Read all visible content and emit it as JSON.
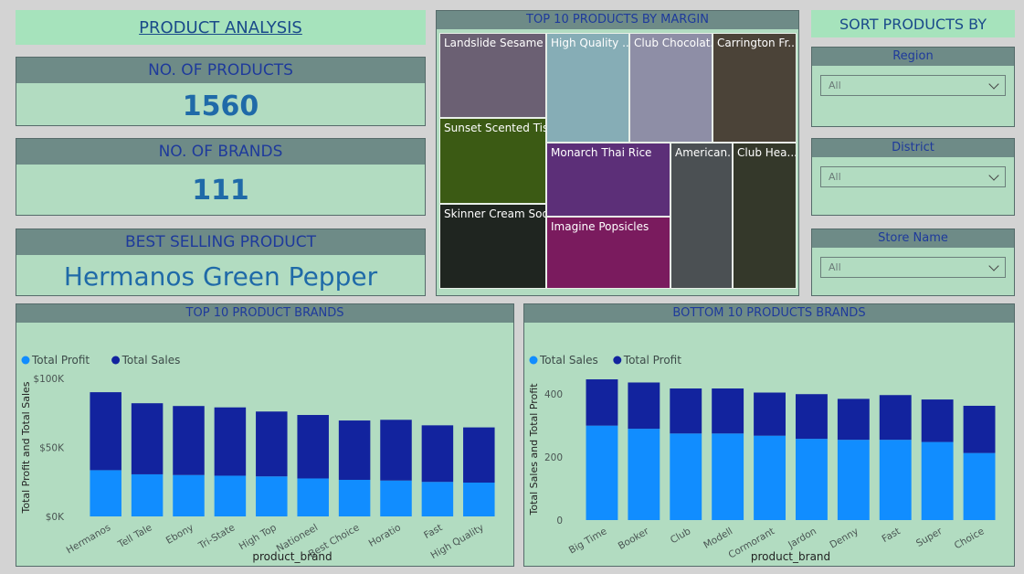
{
  "title": "PRODUCT ANALYSIS",
  "kpis": {
    "products": {
      "label": "NO. OF PRODUCTS",
      "value": "1560"
    },
    "brands": {
      "label": "NO. OF BRANDS",
      "value": "111"
    },
    "best": {
      "label": "BEST SELLING PRODUCT",
      "value": "Hermanos Green Pepper"
    }
  },
  "treemap": {
    "title": "TOP 10 PRODUCTS BY MARGIN",
    "cells": [
      {
        "label": "Landslide Sesame ...",
        "color": "#6b6073"
      },
      {
        "label": "High Quality ...",
        "color": "#86adb6"
      },
      {
        "label": "Club Chocolat...",
        "color": "#8e8ea6"
      },
      {
        "label": "Carrington Fr...",
        "color": "#4b4338"
      },
      {
        "label": "Sunset Scented Tis...",
        "color": "#3b5a14"
      },
      {
        "label": "Monarch Thai Rice",
        "color": "#5c2f78"
      },
      {
        "label": "American...",
        "color": "#4b5053"
      },
      {
        "label": "Club Hea...",
        "color": "#34382a"
      },
      {
        "label": "Skinner Cream Soda",
        "color": "#1f2520"
      },
      {
        "label": "Imagine Popsicles",
        "color": "#7a1b5e"
      }
    ]
  },
  "sort": {
    "title": "SORT PRODUCTS BY",
    "slicers": [
      {
        "label": "Region",
        "value": "All"
      },
      {
        "label": "District",
        "value": "All"
      },
      {
        "label": "Store Name",
        "value": "All"
      }
    ]
  },
  "colors": {
    "light_blue": "#118dff",
    "dark_blue": "#12239e"
  },
  "chart_data": [
    {
      "type": "bar",
      "stacked": true,
      "title": "TOP 10 PRODUCT BRANDS",
      "xlabel": "product_brand",
      "ylabel": "Total Profit and Total Sales",
      "legend": [
        "Total Profit",
        "Total Sales"
      ],
      "ylim": [
        0,
        100000
      ],
      "yticks": [
        "$0K",
        "$50K",
        "$100K"
      ],
      "categories": [
        "Hermanos",
        "Tell Tale",
        "Ebony",
        "Tri-State",
        "High Top",
        "Nationeel",
        "Best Choice",
        "Horatio",
        "Fast",
        "High Quality"
      ],
      "series": [
        {
          "name": "Total Profit",
          "color": "#118dff",
          "values": [
            33500,
            30500,
            30000,
            29500,
            29000,
            27500,
            26500,
            26000,
            25000,
            24500
          ]
        },
        {
          "name": "Total Sales",
          "color": "#12239e",
          "values": [
            56500,
            51500,
            50000,
            49500,
            47000,
            46000,
            43000,
            44000,
            41000,
            40000
          ]
        }
      ]
    },
    {
      "type": "bar",
      "stacked": true,
      "title": "BOTTOM 10 PRODUCTS BRANDS",
      "xlabel": "product_brand",
      "ylabel": "Total Sales and Total Profit",
      "legend": [
        "Total Sales",
        "Total Profit"
      ],
      "ylim": [
        0,
        450
      ],
      "yticks": [
        "0",
        "200",
        "400"
      ],
      "categories": [
        "Big Time",
        "Booker",
        "Club",
        "Modell",
        "Cormorant",
        "Jardon",
        "Denny",
        "Fast",
        "Super",
        "Choice"
      ],
      "series": [
        {
          "name": "Total Sales",
          "color": "#118dff",
          "values": [
            300,
            290,
            275,
            275,
            268,
            258,
            255,
            255,
            248,
            213
          ]
        },
        {
          "name": "Total Profit",
          "color": "#12239e",
          "values": [
            147,
            147,
            143,
            143,
            137,
            142,
            130,
            142,
            135,
            150
          ]
        }
      ]
    }
  ]
}
